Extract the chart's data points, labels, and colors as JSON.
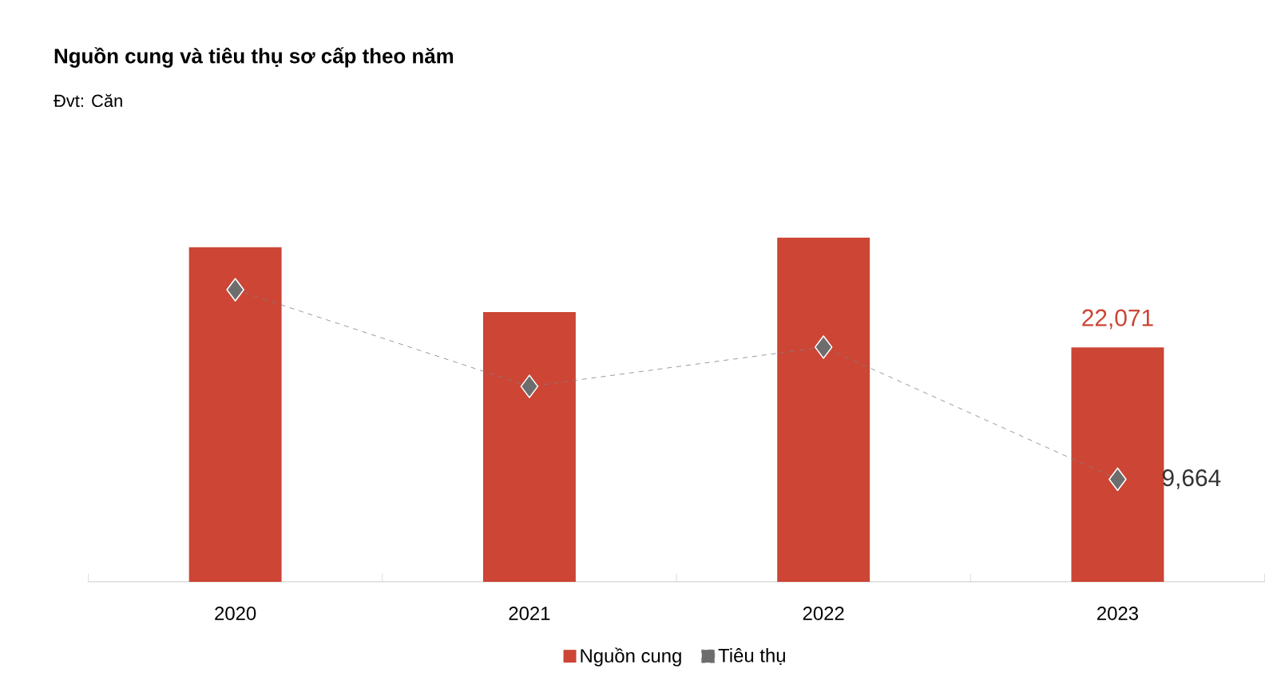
{
  "chart_data": {
    "type": "bar",
    "title": "Nguồn cung và tiêu thụ sơ cấp theo năm",
    "subtitle": "Đvt: Căn",
    "categories": [
      "2020",
      "2021",
      "2022",
      "2023"
    ],
    "series": [
      {
        "name": "Nguồn cung",
        "color": "#cc4535",
        "values": [
          31500,
          25400,
          32400,
          22071
        ],
        "value_labels": [
          null,
          null,
          null,
          "22,071"
        ]
      },
      {
        "name": "Tiêu thụ",
        "type": "line",
        "color": "#6d6d6d",
        "marker": "diamond",
        "line_style": "dashed",
        "values": [
          27500,
          18400,
          22100,
          9664
        ],
        "value_labels": [
          null,
          null,
          null,
          "9,664"
        ]
      }
    ],
    "legend": "bottom"
  }
}
